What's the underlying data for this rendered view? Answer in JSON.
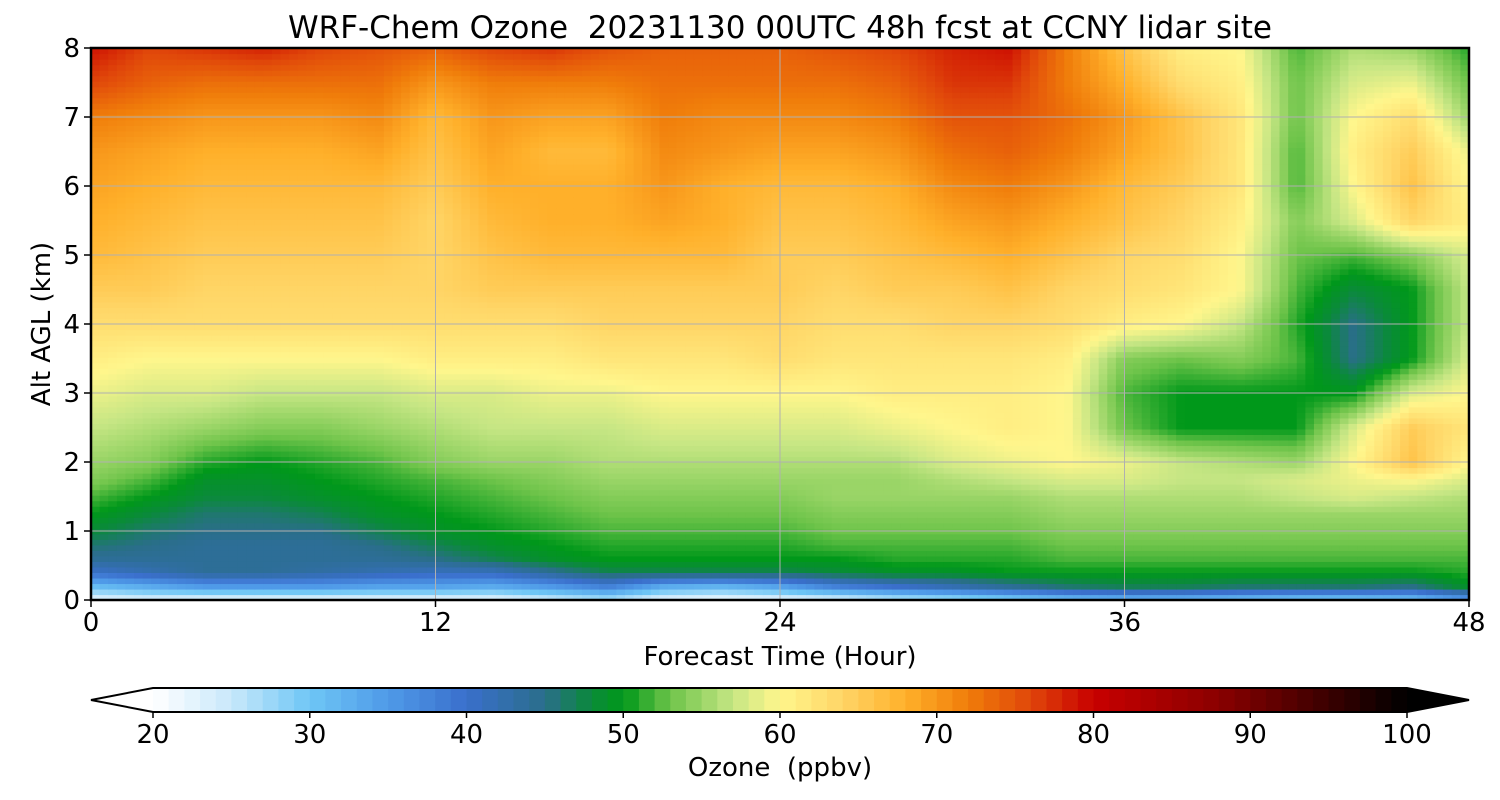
{
  "chart_data": {
    "type": "heatmap",
    "title": "WRF-Chem Ozone  20231130 00UTC 48h fcst at CCNY lidar site",
    "xlabel": "Forecast Time (Hour)",
    "ylabel": "Alt AGL (km)",
    "xlim": [
      0,
      48
    ],
    "ylim": [
      0,
      8
    ],
    "xticks": [
      0,
      12,
      24,
      36,
      48
    ],
    "yticks": [
      0,
      1,
      2,
      3,
      4,
      5,
      6,
      7,
      8
    ],
    "grid": true,
    "x": [
      0,
      2,
      4,
      6,
      8,
      10,
      12,
      14,
      16,
      18,
      20,
      22,
      24,
      26,
      28,
      30,
      32,
      34,
      36,
      38,
      40,
      42,
      44,
      46,
      48
    ],
    "y": [
      0,
      0.2,
      0.4,
      0.6,
      0.8,
      1,
      1.25,
      1.5,
      1.75,
      2,
      2.5,
      3,
      3.5,
      4,
      4.5,
      5,
      5.5,
      6,
      6.5,
      7,
      7.5,
      8
    ],
    "z": [
      [
        22,
        23,
        22,
        22,
        22,
        22,
        22,
        22,
        24,
        26,
        22,
        21,
        22,
        23,
        25,
        26,
        28,
        30,
        31,
        31,
        30,
        29,
        29,
        30,
        34
      ],
      [
        31,
        33,
        35,
        35,
        35,
        34,
        34,
        33,
        35,
        38,
        33,
        32,
        34,
        38,
        40,
        42,
        44,
        46,
        47,
        47,
        46,
        46,
        46,
        45,
        49
      ],
      [
        40,
        42,
        44,
        44,
        43,
        42,
        41,
        41,
        44,
        47,
        47,
        47,
        47,
        48,
        49,
        49,
        50,
        50,
        50,
        50,
        50,
        50,
        50,
        50,
        51
      ],
      [
        44,
        44,
        44,
        44,
        44,
        44,
        45,
        47,
        49,
        50,
        50,
        50,
        50,
        50,
        51,
        51,
        51,
        52,
        52,
        52,
        52,
        52,
        52,
        52,
        52
      ],
      [
        46,
        45,
        44,
        44,
        44,
        45,
        47,
        49,
        50,
        51,
        51,
        51,
        51,
        52,
        52,
        52,
        52,
        53,
        53,
        53,
        53,
        53,
        53,
        53,
        53
      ],
      [
        48,
        46,
        45,
        45,
        45,
        47,
        49,
        50,
        51,
        52,
        52,
        52,
        52,
        53,
        53,
        53,
        53,
        54,
        54,
        54,
        54,
        54,
        54,
        54,
        54
      ],
      [
        50,
        48,
        46,
        46,
        47,
        49,
        50,
        51,
        52,
        53,
        53,
        53,
        53,
        54,
        54,
        54,
        54,
        55,
        55,
        55,
        55,
        55,
        55,
        55,
        55
      ],
      [
        52,
        50,
        48,
        48,
        49,
        50,
        51,
        52,
        53,
        54,
        54,
        54,
        54,
        55,
        55,
        55,
        55,
        56,
        56,
        56,
        56,
        57,
        58,
        57,
        56
      ],
      [
        54,
        52,
        49,
        49,
        50,
        51,
        52,
        53,
        54,
        55,
        55,
        55,
        55,
        55,
        55,
        56,
        57,
        58,
        58,
        57,
        57,
        58,
        59,
        60,
        58
      ],
      [
        55,
        54,
        51,
        50,
        51,
        52,
        54,
        55,
        55,
        56,
        56,
        56,
        56,
        56,
        56,
        58,
        59,
        60,
        59,
        57,
        56,
        55,
        60,
        66,
        60
      ],
      [
        57,
        56,
        55,
        54,
        54,
        55,
        56,
        57,
        57,
        57,
        58,
        58,
        58,
        58,
        59,
        60,
        61,
        60,
        53,
        50,
        50,
        50,
        58,
        65,
        62
      ],
      [
        59,
        58,
        58,
        57,
        57,
        57,
        58,
        58,
        59,
        59,
        60,
        60,
        60,
        60,
        61,
        61,
        61,
        60,
        52,
        50,
        50,
        50,
        50,
        58,
        60
      ],
      [
        61,
        60,
        60,
        60,
        60,
        60,
        61,
        61,
        61,
        62,
        62,
        62,
        63,
        62,
        62,
        62,
        62,
        61,
        54,
        53,
        54,
        52,
        45,
        50,
        58
      ],
      [
        63,
        63,
        63,
        63,
        63,
        63,
        63,
        63,
        63,
        64,
        64,
        64,
        64,
        63,
        63,
        64,
        64,
        63,
        61,
        60,
        57,
        51,
        45,
        50,
        57
      ],
      [
        65,
        65,
        64,
        64,
        64,
        64,
        64,
        65,
        65,
        65,
        65,
        65,
        65,
        64,
        65,
        65,
        66,
        64,
        63,
        62,
        60,
        52,
        48,
        50,
        57
      ],
      [
        67,
        66,
        65,
        65,
        65,
        65,
        64,
        66,
        67,
        67,
        67,
        67,
        65,
        65,
        66,
        67,
        68,
        66,
        64,
        63,
        60,
        53,
        52,
        54,
        58
      ],
      [
        68,
        67,
        66,
        66,
        66,
        66,
        64,
        67,
        68,
        68,
        69,
        68,
        66,
        66,
        67,
        69,
        70,
        68,
        66,
        64,
        61,
        54,
        58,
        64,
        61
      ],
      [
        69,
        68,
        67,
        67,
        67,
        67,
        65,
        68,
        68,
        68,
        70,
        68,
        67,
        67,
        68,
        71,
        72,
        70,
        67,
        65,
        62,
        52,
        60,
        66,
        60
      ],
      [
        70,
        69,
        68,
        68,
        68,
        69,
        66,
        69,
        67,
        67,
        71,
        70,
        69,
        69,
        70,
        73,
        74,
        72,
        69,
        66,
        62,
        52,
        61,
        65,
        59
      ],
      [
        72,
        71,
        70,
        70,
        70,
        71,
        67,
        70,
        69,
        69,
        72,
        71,
        71,
        71,
        72,
        75,
        75,
        73,
        70,
        66,
        62,
        53,
        60,
        63,
        55
      ],
      [
        76,
        74,
        73,
        73,
        73,
        73,
        70,
        72,
        72,
        72,
        73,
        73,
        73,
        73,
        74,
        77,
        77,
        72,
        68,
        63,
        61,
        53,
        58,
        59,
        53
      ],
      [
        79,
        76,
        77,
        78,
        76,
        75,
        74,
        76,
        77,
        75,
        74,
        74,
        74,
        75,
        76,
        78,
        79,
        72,
        66,
        61,
        60,
        52,
        56,
        55,
        51
      ]
    ],
    "colorbar": {
      "label": "Ozone  (ppbv)",
      "min": 20,
      "max": 100,
      "ticks": [
        20,
        30,
        40,
        50,
        60,
        70,
        80,
        90,
        100
      ],
      "extend": "both",
      "stops": [
        {
          "v": 20,
          "c": "#ffffff"
        },
        {
          "v": 25,
          "c": "#c8e8fb"
        },
        {
          "v": 30,
          "c": "#6ec6f5"
        },
        {
          "v": 35,
          "c": "#4f9ae8"
        },
        {
          "v": 40,
          "c": "#3a6fcc"
        },
        {
          "v": 45,
          "c": "#2a6e8a"
        },
        {
          "v": 48,
          "c": "#0a8a3a"
        },
        {
          "v": 50,
          "c": "#00981a"
        },
        {
          "v": 53,
          "c": "#6ec44a"
        },
        {
          "v": 57,
          "c": "#c6e684"
        },
        {
          "v": 60,
          "c": "#fff68c"
        },
        {
          "v": 64,
          "c": "#ffd566"
        },
        {
          "v": 68,
          "c": "#ffb02a"
        },
        {
          "v": 72,
          "c": "#f07d0a"
        },
        {
          "v": 76,
          "c": "#e0460a"
        },
        {
          "v": 80,
          "c": "#c80000"
        },
        {
          "v": 88,
          "c": "#8a0000"
        },
        {
          "v": 95,
          "c": "#3a0000"
        },
        {
          "v": 100,
          "c": "#000000"
        }
      ]
    }
  }
}
